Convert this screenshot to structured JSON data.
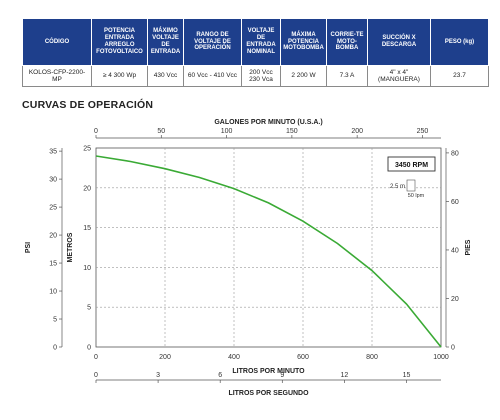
{
  "table": {
    "headers": [
      "CÓDIGO",
      "POTENCIA ENTRADA ARREGLO FOTOVOLTAICO",
      "MÁXIMO VOLTAJE DE ENTRADA",
      "RANGO DE VOLTAJE DE OPERACIÓN",
      "VOLTAJE DE ENTRADA NOMINAL",
      "MÁXIMA POTENCIA MOTOBOMBA",
      "CORRIE-TE MOTO-BOMBA",
      "SUCCIÓN X DESCARGA",
      "PESO (kg)"
    ],
    "row": [
      "KOLOS-CFP-2200-MP",
      "≥ 4 300 Wp",
      "430 Vcc",
      "60 Vcc - 410 Vcc",
      "200 Vcc 230 Vca",
      "2 200 W",
      "7.3 A",
      "4\" x 4\" (MANGUERA)",
      "23.7"
    ]
  },
  "chart_title": "CURVAS DE OPERACIÓN",
  "chart_data": {
    "type": "line",
    "title": "CURVAS DE OPERACIÓN",
    "series": [
      {
        "name": "3450 RPM",
        "x": [
          0,
          100,
          200,
          300,
          400,
          500,
          600,
          700,
          800,
          900,
          1000
        ],
        "y": [
          24,
          23.3,
          22.4,
          21.3,
          19.9,
          18.1,
          15.8,
          13,
          9.6,
          5.4,
          0
        ],
        "color": "#3aaa35"
      }
    ],
    "x_axis": {
      "label": "LITROS POR MINUTO",
      "range": [
        0,
        1000
      ],
      "ticks": [
        "0",
        "200",
        "400",
        "600",
        "800",
        "1000"
      ]
    },
    "y_axis": {
      "label": "METROS",
      "range": [
        0,
        25
      ],
      "ticks": [
        "0",
        "5",
        "10",
        "15",
        "20",
        "25"
      ]
    },
    "top_axis": {
      "label": "GALONES POR MINUTO (U.S.A.)",
      "ticks": [
        "0",
        "50",
        "100",
        "150",
        "200",
        "250"
      ]
    },
    "bottom_axis2": {
      "label": "LITROS POR SEGUNDO",
      "ticks": [
        "0",
        "3",
        "6",
        "9",
        "12",
        "15"
      ]
    },
    "left_axis2": {
      "label": "PSI",
      "ticks": [
        "0",
        "5",
        "10",
        "15",
        "20",
        "25",
        "30",
        "35"
      ]
    },
    "right_axis": {
      "label": "PIES",
      "ticks": [
        "0",
        "20",
        "40",
        "60",
        "80"
      ]
    },
    "rpm_label": "3450 RPM",
    "scale_note": {
      "vertical": "2.5 m",
      "horizontal": "50 lpm"
    },
    "grid": true
  }
}
